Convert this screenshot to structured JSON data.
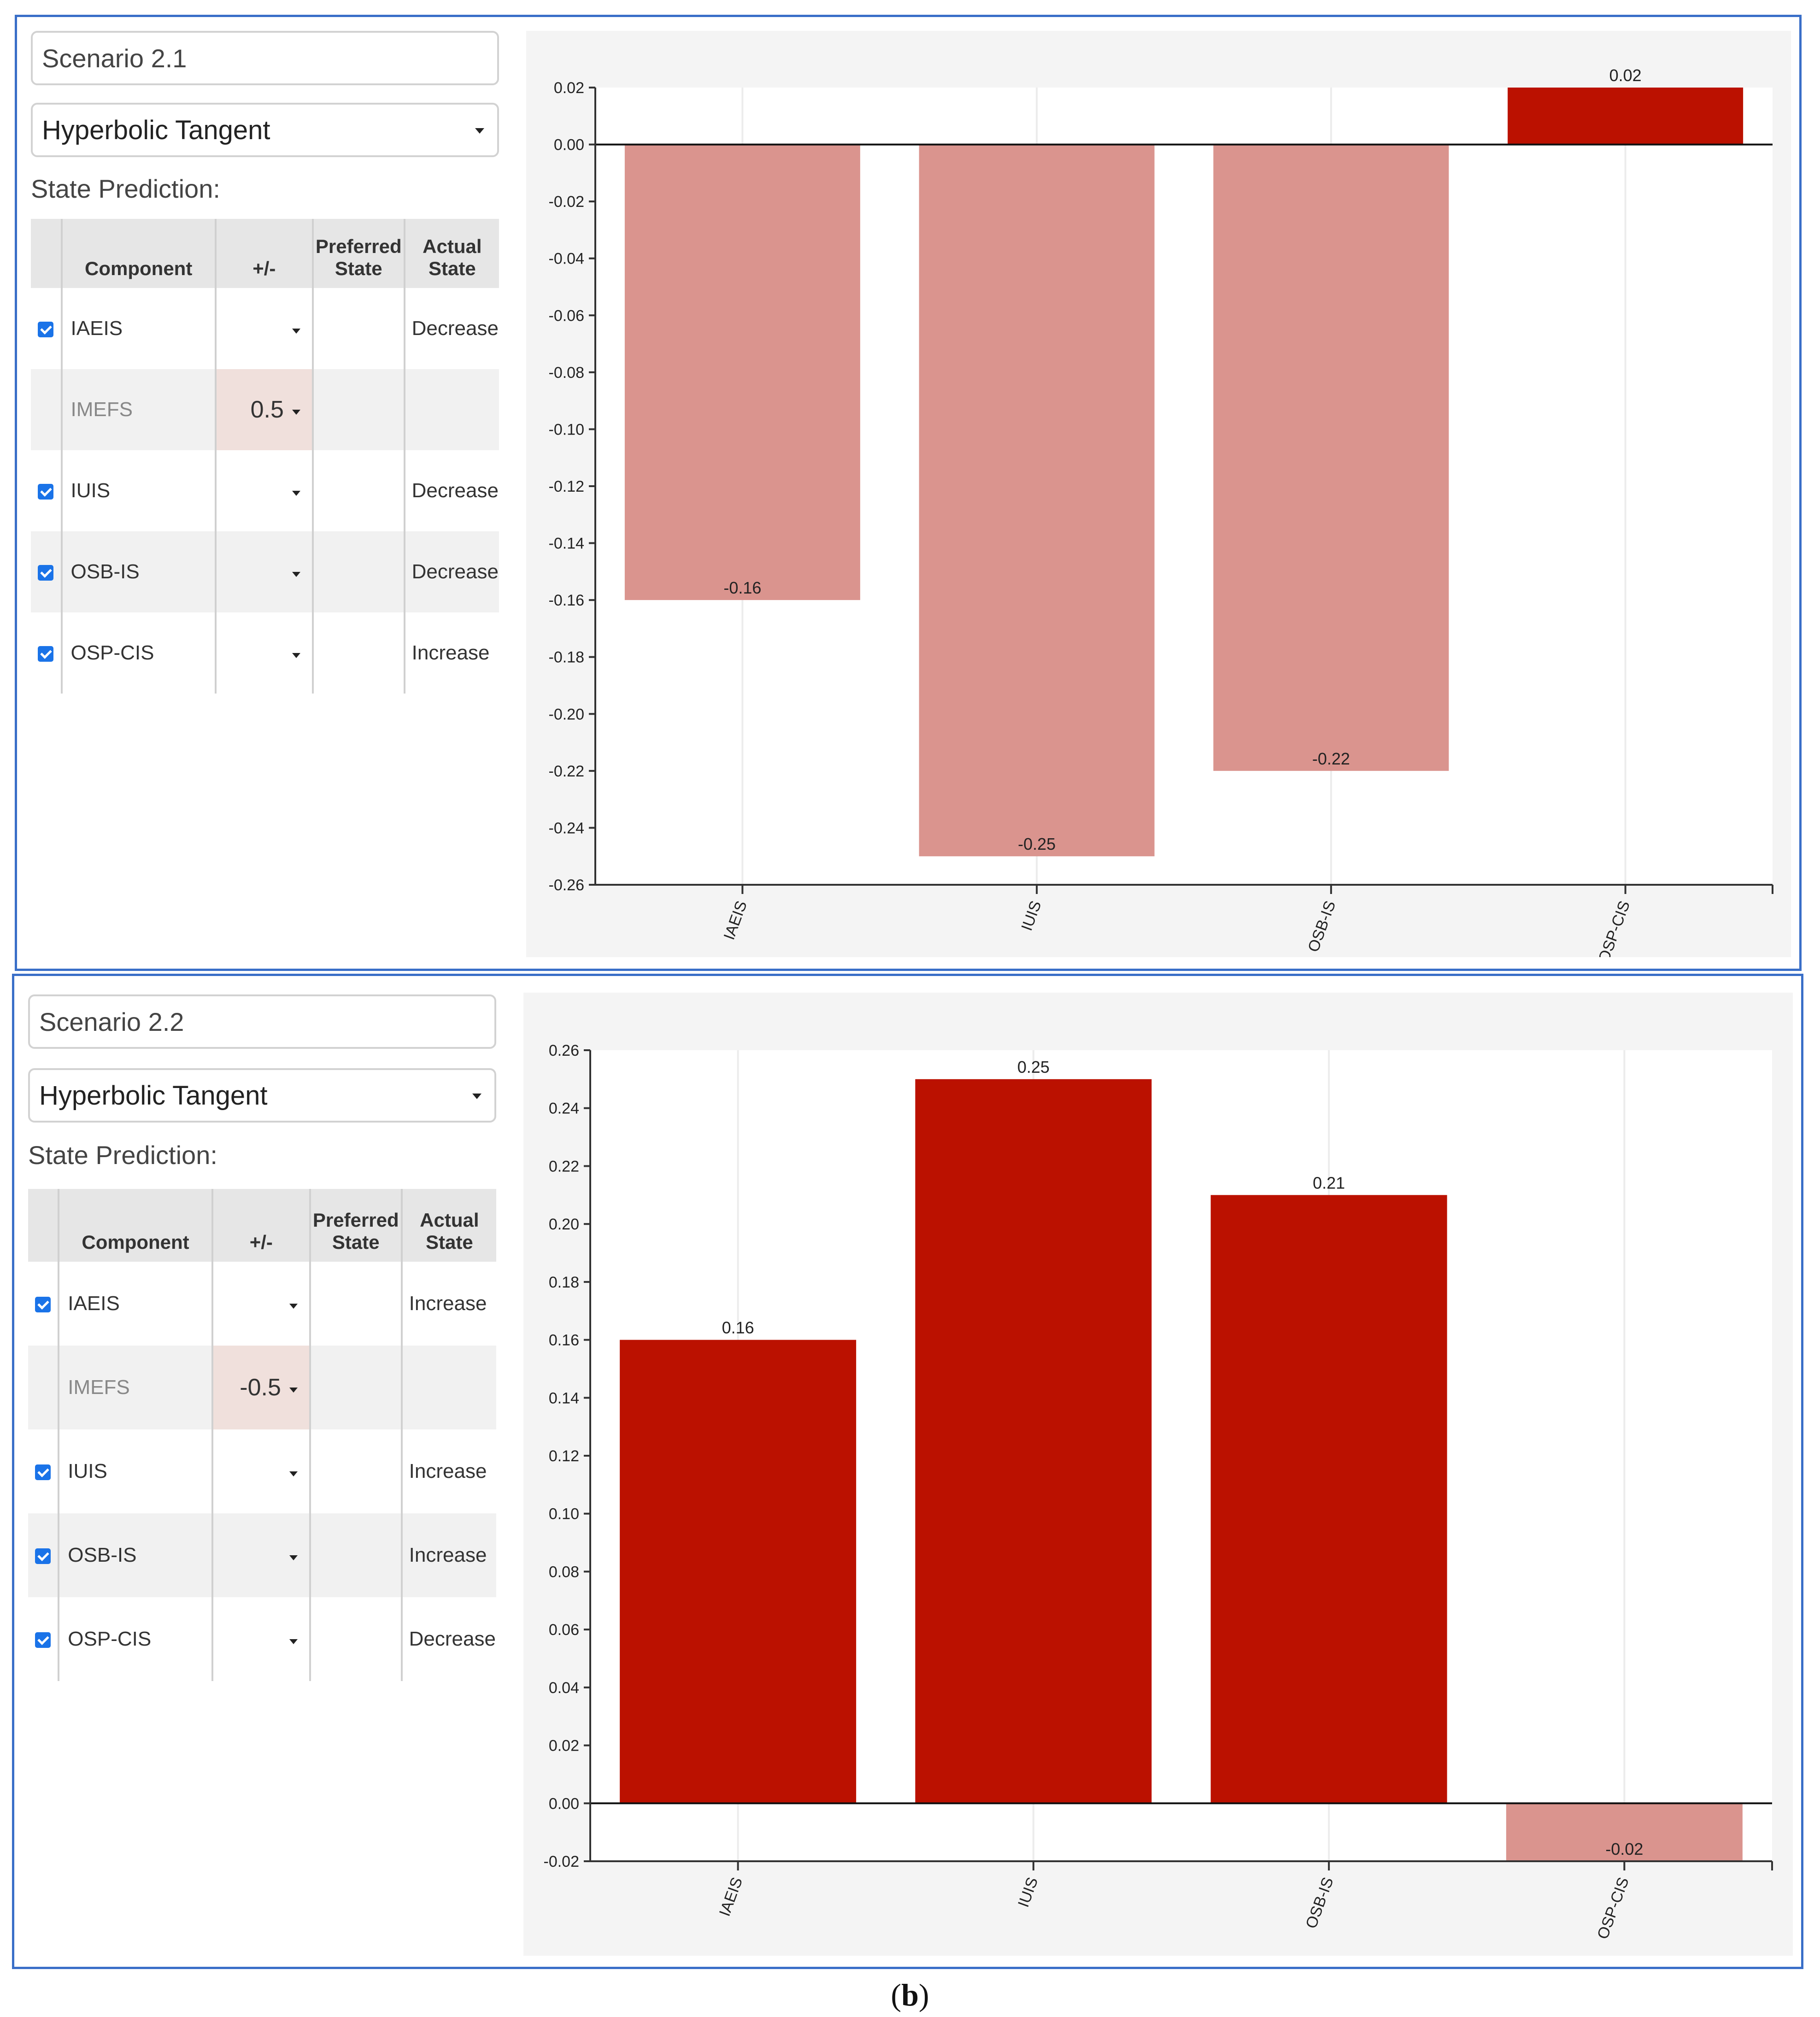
{
  "panels": [
    {
      "scenario_name": "Scenario 2.1",
      "activation_function": "Hyperbolic Tangent",
      "state_prediction_label": "State Prediction:",
      "table": {
        "headers": {
          "component": "Component",
          "plus_minus": "+/-",
          "preferred": [
            "Preferred",
            "State"
          ],
          "actual": [
            "Actual",
            "State"
          ]
        },
        "rows": [
          {
            "checked": true,
            "component": "IAEIS",
            "value": "",
            "preferred": "",
            "actual": "Decrease"
          },
          {
            "checked": false,
            "component": "IMEFS",
            "value": "0.5",
            "preferred": "",
            "actual": ""
          },
          {
            "checked": true,
            "component": "IUIS",
            "value": "",
            "preferred": "",
            "actual": "Decrease"
          },
          {
            "checked": true,
            "component": "OSB-IS",
            "value": "",
            "preferred": "",
            "actual": "Decrease"
          },
          {
            "checked": true,
            "component": "OSP-CIS",
            "value": "",
            "preferred": "",
            "actual": "Increase"
          }
        ]
      },
      "chart_data": {
        "type": "bar",
        "categories": [
          "IAEIS",
          "IUIS",
          "OSB-IS",
          "OSP-CIS"
        ],
        "values": [
          -0.16,
          -0.25,
          -0.22,
          0.02
        ],
        "value_labels": [
          "-0.16",
          "-0.25",
          "-0.22",
          "0.02"
        ],
        "ylim": [
          -0.26,
          0.02
        ],
        "yticks": [
          0.02,
          0.0,
          -0.02,
          -0.04,
          -0.06,
          -0.08,
          -0.1,
          -0.12,
          -0.14,
          -0.16,
          -0.18,
          -0.2,
          -0.22,
          -0.24,
          -0.26
        ],
        "ytick_labels": [
          "0.02",
          "0.00",
          "-0.02",
          "-0.04",
          "-0.06",
          "-0.08",
          "-0.10",
          "-0.12",
          "-0.14",
          "-0.16",
          "-0.18",
          "-0.20",
          "-0.22",
          "-0.24",
          "-0.26"
        ],
        "xlabel": "",
        "ylabel": "",
        "grid": true,
        "colors": {
          "positive": "#bb1100",
          "negative": "#da948e"
        }
      }
    },
    {
      "scenario_name": "Scenario 2.2",
      "activation_function": "Hyperbolic Tangent",
      "state_prediction_label": "State Prediction:",
      "table": {
        "headers": {
          "component": "Component",
          "plus_minus": "+/-",
          "preferred": [
            "Preferred",
            "State"
          ],
          "actual": [
            "Actual",
            "State"
          ]
        },
        "rows": [
          {
            "checked": true,
            "component": "IAEIS",
            "value": "",
            "preferred": "",
            "actual": "Increase"
          },
          {
            "checked": false,
            "component": "IMEFS",
            "value": "-0.5",
            "preferred": "",
            "actual": ""
          },
          {
            "checked": true,
            "component": "IUIS",
            "value": "",
            "preferred": "",
            "actual": "Increase"
          },
          {
            "checked": true,
            "component": "OSB-IS",
            "value": "",
            "preferred": "",
            "actual": "Increase"
          },
          {
            "checked": true,
            "component": "OSP-CIS",
            "value": "",
            "preferred": "",
            "actual": "Decrease"
          }
        ]
      },
      "chart_data": {
        "type": "bar",
        "categories": [
          "IAEIS",
          "IUIS",
          "OSB-IS",
          "OSP-CIS"
        ],
        "values": [
          0.16,
          0.25,
          0.21,
          -0.02
        ],
        "value_labels": [
          "0.16",
          "0.25",
          "0.21",
          "-0.02"
        ],
        "ylim": [
          -0.02,
          0.26
        ],
        "yticks": [
          0.26,
          0.24,
          0.22,
          0.2,
          0.18,
          0.16,
          0.14,
          0.12,
          0.1,
          0.08,
          0.06,
          0.04,
          0.02,
          0.0,
          -0.02
        ],
        "ytick_labels": [
          "0.26",
          "0.24",
          "0.22",
          "0.20",
          "0.18",
          "0.16",
          "0.14",
          "0.12",
          "0.10",
          "0.08",
          "0.06",
          "0.04",
          "0.02",
          "0.00",
          "-0.02"
        ],
        "xlabel": "",
        "ylabel": "",
        "grid": true,
        "colors": {
          "positive": "#bb1100",
          "negative": "#da948e"
        }
      }
    }
  ],
  "caption": {
    "label": "(b)",
    "letter": "b"
  }
}
